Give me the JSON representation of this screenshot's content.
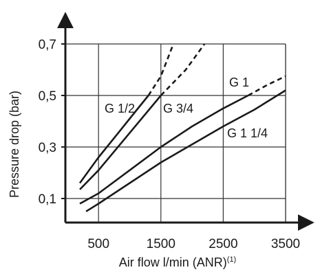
{
  "chart_data": {
    "type": "line",
    "title": "",
    "xlabel": "Air flow l/min (ANR)",
    "xlabel_superscript": "(1)",
    "ylabel": "Pressure drop (bar)",
    "xlim": [
      0,
      3750
    ],
    "ylim": [
      0,
      0.8
    ],
    "xticks": [
      500,
      1500,
      2500,
      3500
    ],
    "xtick_labels": [
      "500",
      "1500",
      "2500",
      "3500"
    ],
    "yticks": [
      0.1,
      0.3,
      0.5,
      0.7
    ],
    "ytick_labels": [
      "0,1",
      "0,3",
      "0,5",
      "0,7"
    ],
    "grid": true,
    "legend": "none (curves labelled directly)",
    "series": [
      {
        "name": "G 1/2",
        "solid": [
          [
            200,
            0.16
          ],
          [
            500,
            0.26
          ],
          [
            800,
            0.35
          ],
          [
            1100,
            0.44
          ],
          [
            1300,
            0.5
          ]
        ],
        "dashed": [
          [
            1300,
            0.5
          ],
          [
            1500,
            0.575
          ],
          [
            1700,
            0.7
          ]
        ]
      },
      {
        "name": "G 3/4",
        "solid": [
          [
            200,
            0.135
          ],
          [
            500,
            0.21
          ],
          [
            1000,
            0.355
          ],
          [
            1500,
            0.5
          ]
        ],
        "dashed": [
          [
            1500,
            0.5
          ],
          [
            1900,
            0.6
          ],
          [
            2200,
            0.7
          ]
        ]
      },
      {
        "name": "G 1",
        "solid": [
          [
            200,
            0.08
          ],
          [
            500,
            0.12
          ],
          [
            1000,
            0.21
          ],
          [
            1500,
            0.3
          ],
          [
            2000,
            0.38
          ],
          [
            2500,
            0.45
          ],
          [
            2900,
            0.5
          ]
        ],
        "dashed": [
          [
            2900,
            0.5
          ],
          [
            3200,
            0.54
          ],
          [
            3500,
            0.575
          ]
        ]
      },
      {
        "name": "G 1 1/4",
        "solid": [
          [
            300,
            0.05
          ],
          [
            500,
            0.08
          ],
          [
            1000,
            0.16
          ],
          [
            1500,
            0.24
          ],
          [
            2000,
            0.31
          ],
          [
            2500,
            0.38
          ],
          [
            3000,
            0.445
          ],
          [
            3500,
            0.52
          ]
        ],
        "dashed": []
      }
    ]
  }
}
